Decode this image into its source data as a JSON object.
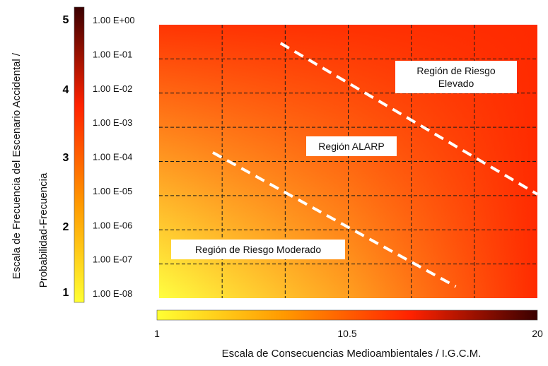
{
  "chart_data": {
    "type": "heatmap",
    "title": "",
    "xlabel": "Escala de Consecuencias Medioambientales / I.G.C.M.",
    "ylabel_lines": [
      "Escala de Frecuencia del Escenario Accidental /",
      "Probabilidad-Frecuencia"
    ],
    "x_ticks": [
      "1",
      "10.5",
      "20"
    ],
    "xlim": [
      1,
      20
    ],
    "y_level_ticks": [
      "1",
      "2",
      "3",
      "4",
      "5"
    ],
    "frequency_ticks": [
      "1.00 E+00",
      "1.00 E-01",
      "1.00 E-02",
      "1.00 E-03",
      "1.00 E-04",
      "1.00 E-05",
      "1.00 E-06",
      "1.00 E-07",
      "1.00 E-08"
    ],
    "ylim": [
      1,
      5
    ],
    "grid": true,
    "grid_style": "dashed",
    "colorscale": [
      "#ffff33",
      "#ff9900",
      "#ff2200",
      "#3a0000"
    ],
    "heat_colors": {
      "low": "#ffff40",
      "mid": "#ffa020",
      "high": "#ff2a00"
    },
    "regions": [
      {
        "label_lines": [
          "Región de Riesgo",
          "Elevado"
        ]
      },
      {
        "label_lines": [
          "Región ALARP"
        ]
      },
      {
        "label_lines": [
          "Región de Riesgo Moderado"
        ]
      }
    ],
    "boundaries": [
      {
        "name": "upper",
        "points": [
          [
            7.1,
            4.73
          ],
          [
            20,
            2.52
          ]
        ]
      },
      {
        "name": "lower",
        "points": [
          [
            3.7,
            3.13
          ],
          [
            15.9,
            1.17
          ]
        ]
      }
    ],
    "boundary_color": "#ffffff"
  }
}
